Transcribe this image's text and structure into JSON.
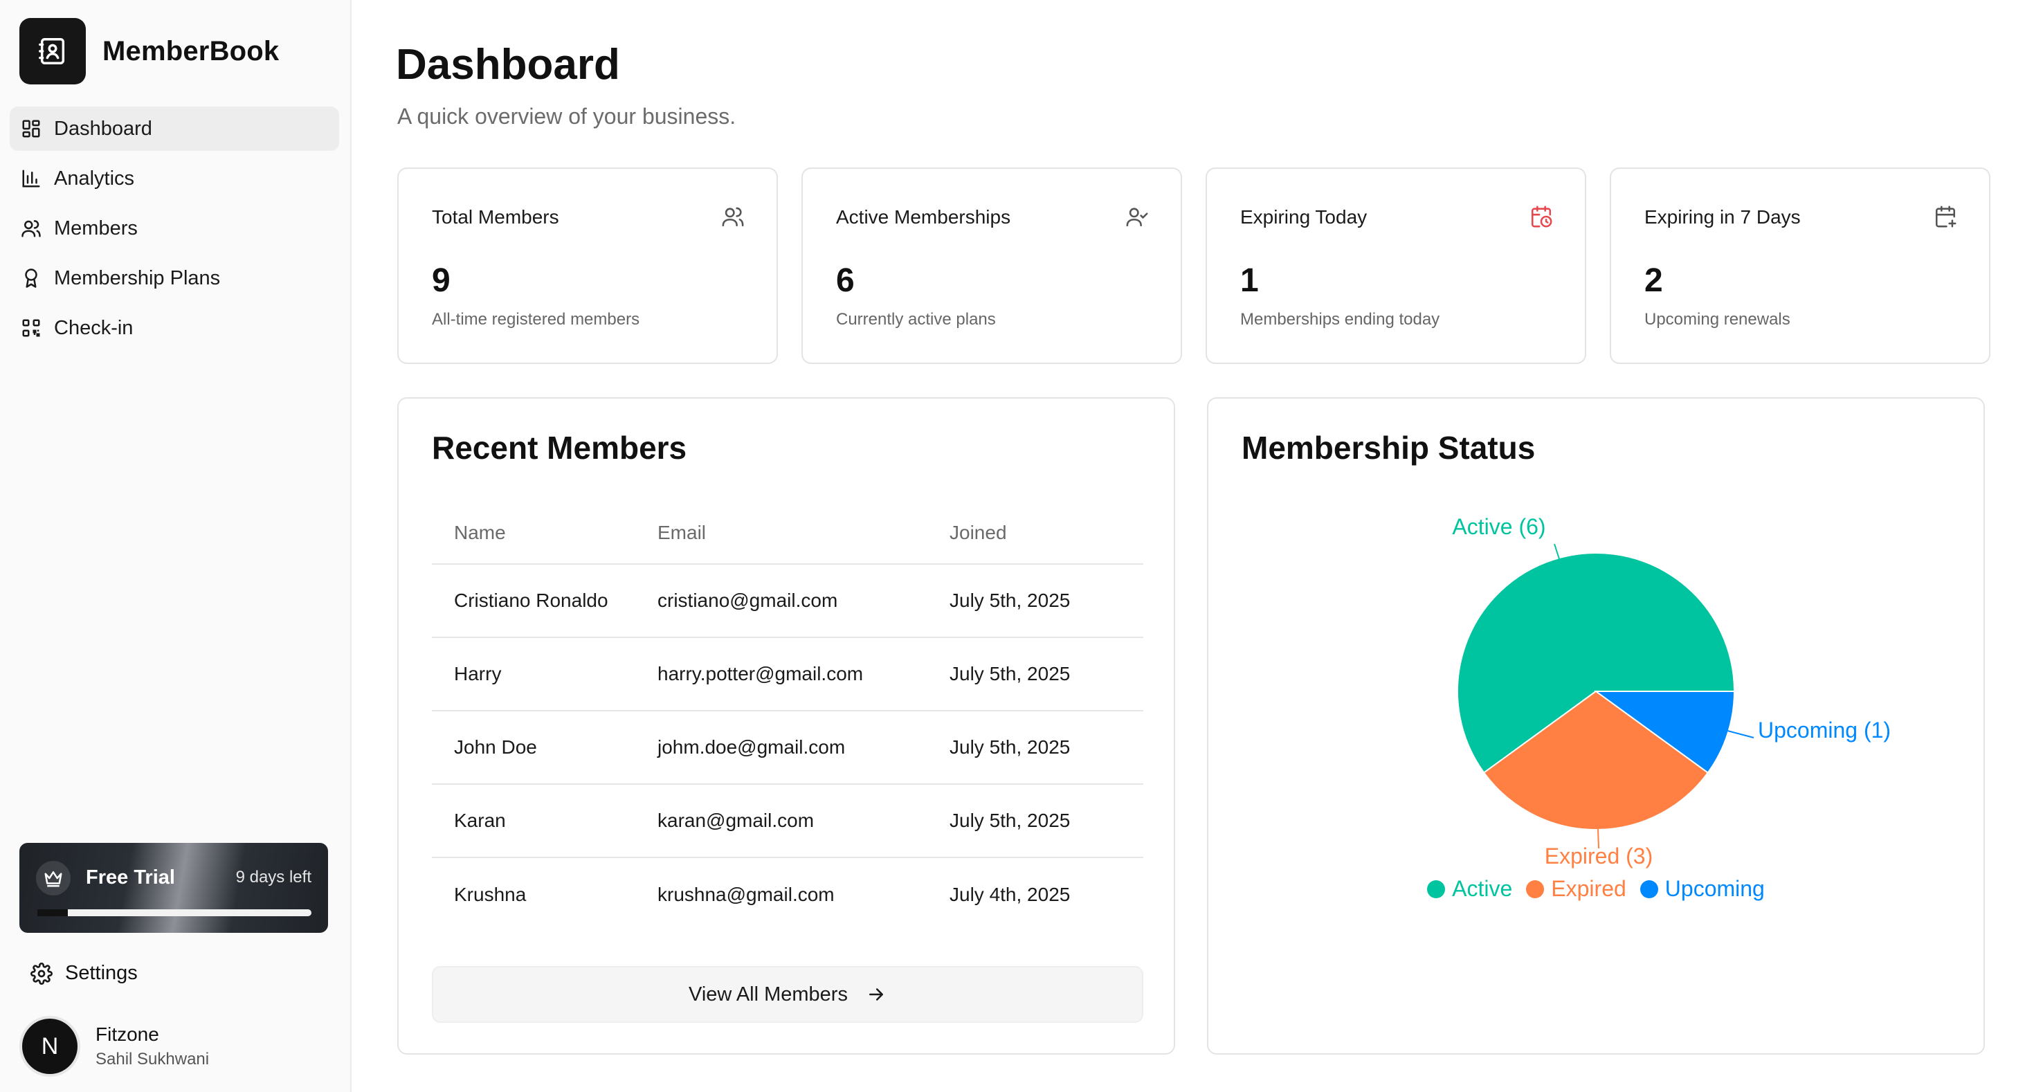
{
  "brand": {
    "name": "MemberBook"
  },
  "sidebar": {
    "items": [
      {
        "label": "Dashboard",
        "icon": "dashboard-icon",
        "active": true
      },
      {
        "label": "Analytics",
        "icon": "bar-chart-icon"
      },
      {
        "label": "Members",
        "icon": "users-icon"
      },
      {
        "label": "Membership Plans",
        "icon": "award-icon"
      },
      {
        "label": "Check-in",
        "icon": "qr-code-icon"
      }
    ],
    "trial": {
      "title": "Free Trial",
      "days_left": "9 days left",
      "progress": 0.11
    },
    "settings_label": "Settings",
    "user": {
      "avatar_letter": "N",
      "org": "Fitzone",
      "name": "Sahil Sukhwani"
    }
  },
  "header": {
    "title": "Dashboard",
    "subtitle": "A quick overview of your business."
  },
  "stats": [
    {
      "label": "Total Members",
      "value": "9",
      "desc": "All-time registered members",
      "icon": "users-icon",
      "icon_color": "#555555"
    },
    {
      "label": "Active Memberships",
      "value": "6",
      "desc": "Currently active plans",
      "icon": "user-check-icon",
      "icon_color": "#555555"
    },
    {
      "label": "Expiring Today",
      "value": "1",
      "desc": "Memberships ending today",
      "icon": "calendar-clock-icon",
      "icon_color": "#e5484d"
    },
    {
      "label": "Expiring in 7 Days",
      "value": "2",
      "desc": "Upcoming renewals",
      "icon": "calendar-plus-icon",
      "icon_color": "#555555"
    }
  ],
  "recent": {
    "title": "Recent Members",
    "columns": [
      "Name",
      "Email",
      "Joined"
    ],
    "rows": [
      {
        "name": "Cristiano Ronaldo",
        "email": "cristiano@gmail.com",
        "joined": "July 5th, 2025"
      },
      {
        "name": "Harry",
        "email": "harry.potter@gmail.com",
        "joined": "July 5th, 2025"
      },
      {
        "name": "John Doe",
        "email": "johm.doe@gmail.com",
        "joined": "July 5th, 2025"
      },
      {
        "name": "Karan",
        "email": "karan@gmail.com",
        "joined": "July 5th, 2025"
      },
      {
        "name": "Krushna",
        "email": "krushna@gmail.com",
        "joined": "July 4th, 2025"
      }
    ],
    "view_all": "View All Members"
  },
  "status": {
    "title": "Membership Status",
    "slice_labels": [
      "Active (6)",
      "Expired (3)",
      "Upcoming (1)"
    ],
    "legend": [
      "Active",
      "Expired",
      "Upcoming"
    ]
  },
  "chart_data": {
    "type": "pie",
    "title": "Membership Status",
    "categories": [
      "Active",
      "Expired",
      "Upcoming"
    ],
    "values": [
      6,
      3,
      1
    ],
    "colors": [
      "#00c49f",
      "#ff8042",
      "#0088fe"
    ],
    "legend_position": "bottom"
  }
}
